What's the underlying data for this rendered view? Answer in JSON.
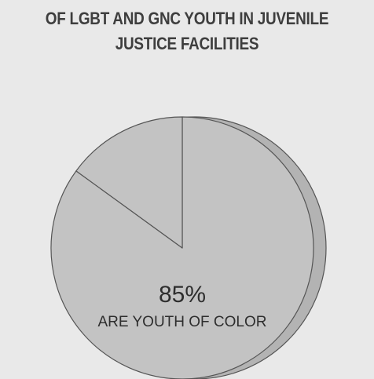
{
  "title": {
    "line1": "OF LGBT AND GNC YOUTH IN JUVENILE",
    "line2": "JUSTICE FACILITIES"
  },
  "colors": {
    "background": "#e9e9e9",
    "slice_fill": "#c3c3c3",
    "rim_fill": "#b3b3b3",
    "outline": "#555555",
    "text": "#2e2e2e"
  },
  "chart_data": {
    "type": "pie",
    "title": "OF LGBT AND GNC YOUTH IN JUVENILE JUSTICE FACILITIES",
    "slices": [
      {
        "label": "ARE YOUTH OF COLOR",
        "value": 85,
        "display": "85%"
      },
      {
        "label": "",
        "value": 15,
        "display": ""
      }
    ]
  }
}
